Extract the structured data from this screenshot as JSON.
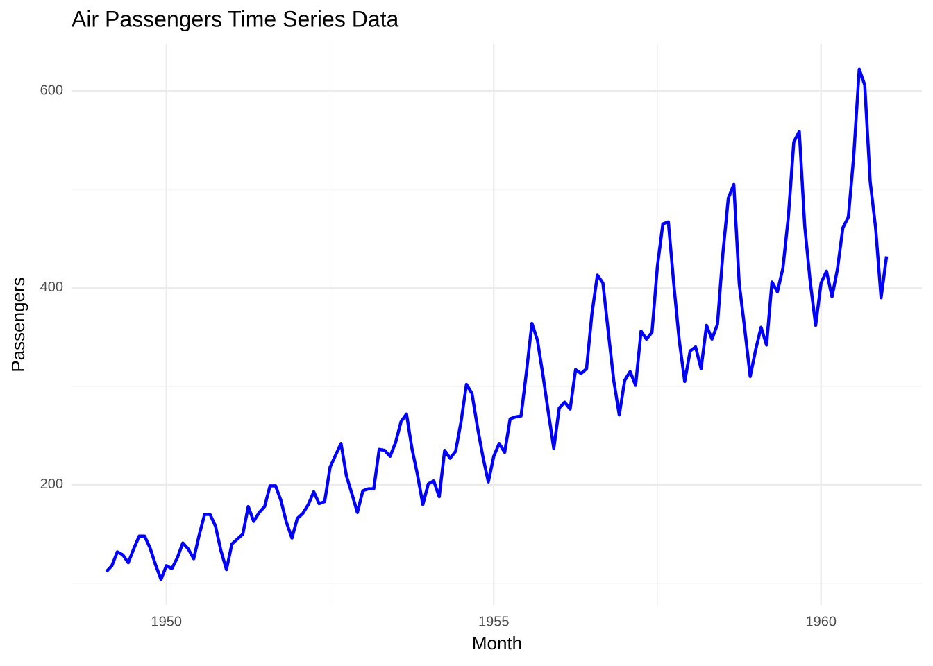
{
  "chart_data": {
    "type": "line",
    "title": "Air Passengers Time Series Data",
    "x_label": "Month",
    "y_label": "Passengers",
    "x": [
      1949.083,
      1949.167,
      1949.25,
      1949.333,
      1949.417,
      1949.5,
      1949.583,
      1949.667,
      1949.75,
      1949.833,
      1949.917,
      1950,
      1950.083,
      1950.167,
      1950.25,
      1950.333,
      1950.417,
      1950.5,
      1950.583,
      1950.667,
      1950.75,
      1950.833,
      1950.917,
      1951,
      1951.083,
      1951.167,
      1951.25,
      1951.333,
      1951.417,
      1951.5,
      1951.583,
      1951.667,
      1951.75,
      1951.833,
      1951.917,
      1952,
      1952.083,
      1952.167,
      1952.25,
      1952.333,
      1952.417,
      1952.5,
      1952.583,
      1952.667,
      1952.75,
      1952.833,
      1952.917,
      1953,
      1953.083,
      1953.167,
      1953.25,
      1953.333,
      1953.417,
      1953.5,
      1953.583,
      1953.667,
      1953.75,
      1953.833,
      1953.917,
      1954,
      1954.083,
      1954.167,
      1954.25,
      1954.333,
      1954.417,
      1954.5,
      1954.583,
      1954.667,
      1954.75,
      1954.833,
      1954.917,
      1955,
      1955.083,
      1955.167,
      1955.25,
      1955.333,
      1955.417,
      1955.5,
      1955.583,
      1955.667,
      1955.75,
      1955.833,
      1955.917,
      1956,
      1956.083,
      1956.167,
      1956.25,
      1956.333,
      1956.417,
      1956.5,
      1956.583,
      1956.667,
      1956.75,
      1956.833,
      1956.917,
      1957,
      1957.083,
      1957.167,
      1957.25,
      1957.333,
      1957.417,
      1957.5,
      1957.583,
      1957.667,
      1957.75,
      1957.833,
      1957.917,
      1958,
      1958.083,
      1958.167,
      1958.25,
      1958.333,
      1958.417,
      1958.5,
      1958.583,
      1958.667,
      1958.75,
      1958.833,
      1958.917,
      1959,
      1959.083,
      1959.167,
      1959.25,
      1959.333,
      1959.417,
      1959.5,
      1959.583,
      1959.667,
      1959.75,
      1959.833,
      1959.917,
      1960,
      1960.083,
      1960.167,
      1960.25,
      1960.333,
      1960.417,
      1960.5,
      1960.583,
      1960.667,
      1960.75,
      1960.833,
      1960.917,
      1961
    ],
    "series": [
      {
        "name": "Passengers",
        "color": "#0000ff",
        "values": [
          112,
          118,
          132,
          129,
          121,
          135,
          148,
          148,
          136,
          119,
          104,
          118,
          115,
          126,
          141,
          135,
          125,
          149,
          170,
          170,
          158,
          133,
          114,
          140,
          145,
          150,
          178,
          163,
          172,
          178,
          199,
          199,
          184,
          162,
          146,
          166,
          171,
          180,
          193,
          181,
          183,
          218,
          230,
          242,
          209,
          191,
          172,
          194,
          196,
          196,
          236,
          235,
          229,
          243,
          264,
          272,
          237,
          211,
          180,
          201,
          204,
          188,
          235,
          227,
          234,
          264,
          302,
          293,
          259,
          229,
          203,
          229,
          242,
          233,
          267,
          269,
          270,
          315,
          364,
          347,
          312,
          274,
          237,
          278,
          284,
          277,
          317,
          313,
          318,
          374,
          413,
          405,
          355,
          306,
          271,
          306,
          315,
          301,
          356,
          348,
          355,
          422,
          465,
          467,
          404,
          347,
          305,
          336,
          340,
          318,
          362,
          348,
          363,
          435,
          491,
          505,
          404,
          359,
          310,
          337,
          360,
          342,
          406,
          396,
          420,
          472,
          548,
          559,
          463,
          407,
          362,
          405,
          417,
          391,
          419,
          461,
          472,
          535,
          622,
          606,
          508,
          461,
          390,
          432
        ]
      }
    ],
    "xlim": [
      1948.55,
      1961.54
    ],
    "xticks": [
      1950,
      1955,
      1960
    ],
    "ylim": [
      78.1,
      647.9
    ],
    "yticks": [
      200,
      400,
      600
    ],
    "grid": true
  }
}
